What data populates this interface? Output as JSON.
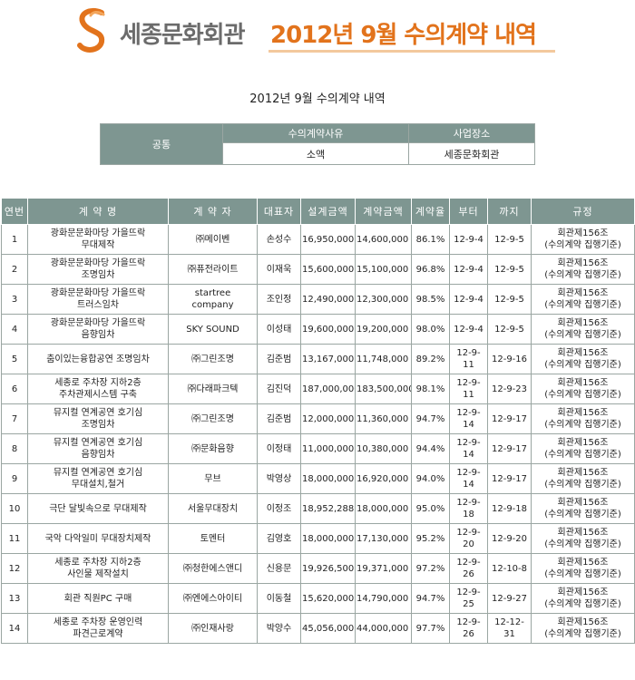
{
  "header": {
    "org_name": "세종문화회관",
    "headline": "2012년 9월 수의계약 내역"
  },
  "subtitle": "2012년 9월 수의계약 내역",
  "common": {
    "label": "공통",
    "reason_header": "수의계약사유",
    "reason_value": "소액",
    "place_header": "사업장소",
    "place_value": "세종문화회관"
  },
  "columns": [
    "연번",
    "계 약 명",
    "계 약 자",
    "대표자",
    "설계금액",
    "계약금액",
    "계약율",
    "부터",
    "까지",
    "규정"
  ],
  "rows": [
    {
      "no": "1",
      "name": [
        "광화문문화마당 가을뜨락",
        "무대제작"
      ],
      "contractor": [
        "㈜메이벤"
      ],
      "rep": "손성수",
      "design": "16,950,000",
      "amount": "14,600,000",
      "rate": "86.1%",
      "from": "12-9-4",
      "to": "12-9-5",
      "rule": [
        "회관제156조",
        "(수의계약 집행기준)"
      ]
    },
    {
      "no": "2",
      "name": [
        "광화문문화마당 가을뜨락",
        "조명임차"
      ],
      "contractor": [
        "㈜퓨전라이트"
      ],
      "rep": "이재욱",
      "design": "15,600,000",
      "amount": "15,100,000",
      "rate": "96.8%",
      "from": "12-9-4",
      "to": "12-9-5",
      "rule": [
        "회관제156조",
        "(수의계약 집행기준)"
      ]
    },
    {
      "no": "3",
      "name": [
        "광화문문화마당 가을뜨락",
        "트러스임차"
      ],
      "contractor": [
        "startree",
        "company"
      ],
      "rep": "조인정",
      "design": "12,490,000",
      "amount": "12,300,000",
      "rate": "98.5%",
      "from": "12-9-4",
      "to": "12-9-5",
      "rule": [
        "회관제156조",
        "(수의계약 집행기준)"
      ]
    },
    {
      "no": "4",
      "name": [
        "광화문문화마당 가을뜨락",
        "음향임차"
      ],
      "contractor": [
        "SKY SOUND"
      ],
      "rep": "이성태",
      "design": "19,600,000",
      "amount": "19,200,000",
      "rate": "98.0%",
      "from": "12-9-4",
      "to": "12-9-5",
      "rule": [
        "회관제156조",
        "(수의계약 집행기준)"
      ]
    },
    {
      "no": "5",
      "name": [
        "춤이있는융합공연 조명임차"
      ],
      "contractor": [
        "㈜그린조명"
      ],
      "rep": "김준범",
      "design": "13,167,000",
      "amount": "11,748,000",
      "rate": "89.2%",
      "from": "12-9-11",
      "to": "12-9-16",
      "rule": [
        "회관제156조",
        "(수의계약 집행기준)"
      ]
    },
    {
      "no": "6",
      "name": [
        "세종로 주차장 지하2층",
        "주차관제시스템 구축"
      ],
      "contractor": [
        "㈜다래파크텍"
      ],
      "rep": "김진덕",
      "design": "187,000,000",
      "amount": "183,500,000",
      "rate": "98.1%",
      "from": "12-9-11",
      "to": "12-9-23",
      "rule": [
        "회관제156조",
        "(수의계약 집행기준)"
      ]
    },
    {
      "no": "7",
      "name": [
        "뮤지컬 연계공연 호기심",
        "조명임차"
      ],
      "contractor": [
        "㈜그린조명"
      ],
      "rep": "김준범",
      "design": "12,000,000",
      "amount": "11,360,000",
      "rate": "94.7%",
      "from": "12-9-14",
      "to": "12-9-17",
      "rule": [
        "회관제156조",
        "(수의계약 집행기준)"
      ]
    },
    {
      "no": "8",
      "name": [
        "뮤지컬 연계공연 호기심",
        "음향임차"
      ],
      "contractor": [
        "㈜문화음향"
      ],
      "rep": "이정태",
      "design": "11,000,000",
      "amount": "10,380,000",
      "rate": "94.4%",
      "from": "12-9-14",
      "to": "12-9-17",
      "rule": [
        "회관제156조",
        "(수의계약 집행기준)"
      ]
    },
    {
      "no": "9",
      "name": [
        "뮤지컬 연계공연 호기심",
        "무대설치,철거"
      ],
      "contractor": [
        "무브"
      ],
      "rep": "박영상",
      "design": "18,000,000",
      "amount": "16,920,000",
      "rate": "94.0%",
      "from": "12-9-14",
      "to": "12-9-17",
      "rule": [
        "회관제156조",
        "(수의계약 집행기준)"
      ]
    },
    {
      "no": "10",
      "name": [
        "극단 달빛속으로 무대제작"
      ],
      "contractor": [
        "서울무대장치"
      ],
      "rep": "이정조",
      "design": "18,952,288",
      "amount": "18,000,000",
      "rate": "95.0%",
      "from": "12-9-18",
      "to": "12-9-18",
      "rule": [
        "회관제156조",
        "(수의계약 집행기준)"
      ]
    },
    {
      "no": "11",
      "name": [
        "국악 다악일미 무대장치제작"
      ],
      "contractor": [
        "토멘터"
      ],
      "rep": "김영호",
      "design": "18,000,000",
      "amount": "17,130,000",
      "rate": "95.2%",
      "from": "12-9-20",
      "to": "12-9-20",
      "rule": [
        "회관제156조",
        "(수의계약 집행기준)"
      ]
    },
    {
      "no": "12",
      "name": [
        "세종로 주차장 지하2층",
        "사인물 제작설치"
      ],
      "contractor": [
        "㈜청한에스앤디"
      ],
      "rep": "신용문",
      "design": "19,926,500",
      "amount": "19,371,000",
      "rate": "97.2%",
      "from": "12-9-26",
      "to": "12-10-8",
      "rule": [
        "회관제156조",
        "(수의계약 집행기준)"
      ]
    },
    {
      "no": "13",
      "name": [
        "회관 직원PC 구매"
      ],
      "contractor": [
        "㈜엔에스아이티"
      ],
      "rep": "이동철",
      "design": "15,620,000",
      "amount": "14,790,000",
      "rate": "94.7%",
      "from": "12-9-25",
      "to": "12-9-27",
      "rule": [
        "회관제156조",
        "(수의계약 집행기준)"
      ]
    },
    {
      "no": "14",
      "name": [
        "세종로 주차장 운영인력",
        "파견근로계약"
      ],
      "contractor": [
        "㈜인재사랑"
      ],
      "rep": "박양수",
      "design": "45,056,000",
      "amount": "44,000,000",
      "rate": "97.7%",
      "from": "12-9-26",
      "to": "12-12-31",
      "rule": [
        "회관제156조",
        "(수의계약 집행기준)"
      ]
    }
  ],
  "colors": {
    "header_bg": "#7e9691",
    "accent_orange": "#e2731c",
    "org_gray": "#6b6b6b"
  }
}
